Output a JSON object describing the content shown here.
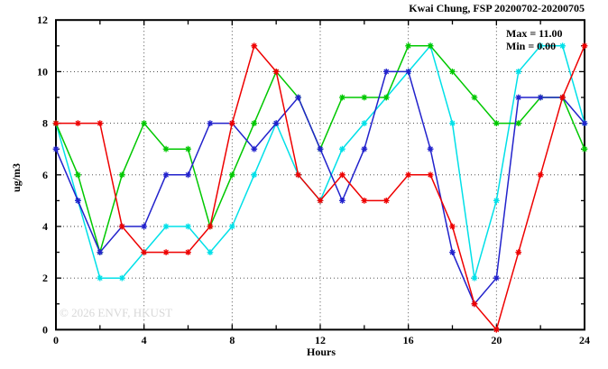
{
  "window": {
    "title": "Kwai Chung, FSP 20200702-20200705"
  },
  "chart_data": {
    "type": "line",
    "title": "Kwai Chung, FSP 20200702-20200705",
    "xlabel": "Hours",
    "ylabel": "ug/m3",
    "xlim": [
      0,
      24
    ],
    "ylim": [
      0,
      12
    ],
    "xticks": [
      0,
      4,
      8,
      12,
      16,
      20,
      24
    ],
    "yticks": [
      0,
      2,
      4,
      6,
      8,
      10,
      12
    ],
    "xtick_minor_step": 2,
    "ytick_minor_step": 1,
    "grid": true,
    "grid_style": "dotted",
    "legend_position": "top-right-inside",
    "x": [
      0,
      1,
      2,
      3,
      4,
      5,
      6,
      7,
      8,
      9,
      10,
      11,
      12,
      13,
      14,
      15,
      16,
      17,
      18,
      19,
      20,
      21,
      22,
      23,
      24
    ],
    "series": [
      {
        "name": "series-cyan",
        "color": "#00e0e8",
        "values": [
          8,
          5,
          2,
          2,
          3,
          4,
          4,
          3,
          4,
          6,
          8,
          6,
          5,
          7,
          8,
          9,
          10,
          11,
          8,
          2,
          5,
          10,
          11,
          11,
          8
        ]
      },
      {
        "name": "series-green",
        "color": "#00c800",
        "values": [
          8,
          6,
          3,
          6,
          8,
          7,
          7,
          4,
          6,
          8,
          10,
          9,
          7,
          9,
          9,
          9,
          11,
          11,
          10,
          9,
          8,
          8,
          9,
          9,
          7
        ]
      },
      {
        "name": "series-blue",
        "color": "#2222cc",
        "values": [
          7,
          5,
          3,
          4,
          4,
          6,
          6,
          8,
          8,
          7,
          8,
          9,
          7,
          5,
          7,
          10,
          10,
          7,
          3,
          1,
          2,
          9,
          9,
          9,
          8
        ]
      },
      {
        "name": "series-red",
        "color": "#ee0000",
        "values": [
          8,
          8,
          8,
          4,
          3,
          3,
          3,
          4,
          8,
          11,
          10,
          6,
          5,
          6,
          5,
          5,
          6,
          6,
          4,
          1,
          0,
          3,
          6,
          9,
          11
        ]
      }
    ],
    "annotations": {
      "max_label": "Max = 11.00",
      "min_label": "Min = 0.00"
    },
    "watermark": "© 2026 ENVF, HKUST"
  }
}
